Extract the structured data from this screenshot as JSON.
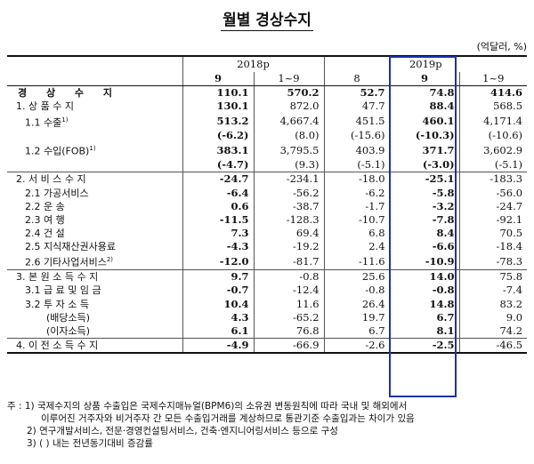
{
  "title": "월별 경상수지",
  "unit": "(억달러, %)",
  "header": {
    "year1": "2018p",
    "year2": "2019p",
    "cols": [
      "9",
      "1~9",
      "8",
      "9",
      "1~9"
    ]
  },
  "rows": [
    {
      "label": "경 상 수 지",
      "v": [
        "110.1",
        "570.2",
        "52.7",
        "74.8",
        "414.6"
      ]
    },
    {
      "label": "1. 상 품 수 지",
      "v": [
        "130.1",
        "872.0",
        "47.7",
        "88.4",
        "568.5"
      ]
    },
    {
      "label": "1.1 수출",
      "sup": "1)",
      "v": [
        "513.2",
        "4,667.4",
        "451.5",
        "460.1",
        "4,171.4"
      ]
    },
    {
      "label": "",
      "v": [
        "(-6.2)",
        "(8.0)",
        "(-15.6)",
        "(-10.3)",
        "(-10.6)"
      ]
    },
    {
      "label": "1.2 수입(FOB)",
      "sup": "1)",
      "v": [
        "383.1",
        "3,795.5",
        "403.9",
        "371.7",
        "3,602.9"
      ]
    },
    {
      "label": "",
      "v": [
        "(-4.7)",
        "(9.3)",
        "(-5.1)",
        "(-3.0)",
        "(-5.1)"
      ]
    },
    {
      "label": "2. 서 비 스 수 지",
      "v": [
        "-24.7",
        "-234.1",
        "-18.0",
        "-25.1",
        "-183.3"
      ]
    },
    {
      "label": "2.1 가공서비스",
      "v": [
        "-6.4",
        "-56.2",
        "-6.2",
        "-5.8",
        "-56.0"
      ]
    },
    {
      "label": "2.2 운          송",
      "v": [
        "0.6",
        "-38.7",
        "-1.7",
        "-3.2",
        "-24.7"
      ]
    },
    {
      "label": "2.3 여          행",
      "v": [
        "-11.5",
        "-128.3",
        "-10.7",
        "-7.8",
        "-92.1"
      ]
    },
    {
      "label": "2.4 건          설",
      "v": [
        "7.3",
        "69.4",
        "6.8",
        "8.4",
        "70.5"
      ]
    },
    {
      "label": "2.5 지식재산권사용료",
      "v": [
        "-4.3",
        "-19.2",
        "2.4",
        "-6.6",
        "-18.4"
      ]
    },
    {
      "label": "2.6 기타사업서비스",
      "sup": "2)",
      "v": [
        "-12.0",
        "-81.7",
        "-11.6",
        "-10.9",
        "-78.3"
      ]
    },
    {
      "label": "3. 본 원 소 득 수 지",
      "v": [
        "9.7",
        "-0.8",
        "25.6",
        "14.0",
        "75.8"
      ]
    },
    {
      "label": "3.1 급 료 및 임 금",
      "v": [
        "-0.7",
        "-12.4",
        "-0.8",
        "-0.8",
        "-7.4"
      ]
    },
    {
      "label": "3.2 투  자  소  득",
      "v": [
        "10.4",
        "11.6",
        "26.4",
        "14.8",
        "83.2"
      ]
    },
    {
      "label": "(배당소득)",
      "v": [
        "4.3",
        "-65.2",
        "19.7",
        "6.7",
        "9.0"
      ]
    },
    {
      "label": "(이자소득)",
      "v": [
        "6.1",
        "76.8",
        "6.7",
        "8.1",
        "74.2"
      ]
    },
    {
      "label": "4. 이 전 소 득 수 지",
      "v": [
        "-4.9",
        "-66.9",
        "-2.6",
        "-2.5",
        "-46.5"
      ]
    }
  ],
  "notes": [
    "주 : 1) 국제수지의 상품 수출입은 국제수지매뉴얼(BPM6)의 소유권 변동원칙에 따라 국내 및 해외에서",
    "이루어진 거주자와 비거주자 간 모든 수출입거래를 계상하므로 통관기준 수출입과는 차이가 있음",
    "2) 연구개발서비스, 전문·경영컨설팅서비스, 건축·엔지니어링서비스 등으로 구성",
    "3) ( ) 내는 전년동기대비 증감률"
  ]
}
